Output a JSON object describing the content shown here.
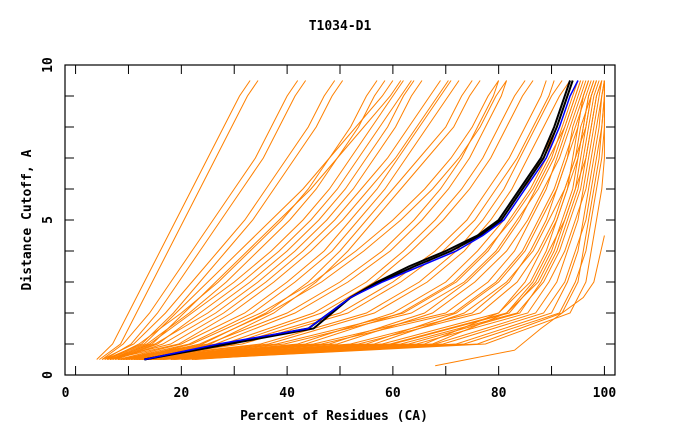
{
  "chart_data": {
    "type": "line",
    "title": "T1034-D1",
    "xlabel": "Percent of Residues (CA)",
    "ylabel": "Distance Cutoff, A",
    "xlim": [
      -2,
      102
    ],
    "ylim": [
      0,
      10
    ],
    "xticks": [
      0,
      20,
      40,
      60,
      80,
      100
    ],
    "yticks": [
      0,
      5,
      10
    ],
    "grid": false,
    "legend": "none",
    "colors": {
      "others": "#ff8000",
      "highlight": "#0000ff",
      "group": "#000000"
    },
    "levels": [
      0.5,
      1,
      2,
      3,
      4,
      5,
      6,
      7,
      8,
      9,
      9.5
    ],
    "series": [
      {
        "name": "others",
        "curves": [
          [
            4,
            7,
            10,
            13,
            16,
            19,
            22,
            25,
            28,
            31,
            33
          ],
          [
            5,
            9,
            14,
            18,
            22,
            26,
            30,
            34,
            37,
            40,
            42
          ],
          [
            6,
            12,
            20,
            27,
            33,
            39,
            44,
            48,
            52,
            55,
            57
          ],
          [
            7,
            15,
            25,
            33,
            40,
            46,
            51,
            55,
            59,
            62,
            64
          ],
          [
            8,
            20,
            32,
            40,
            47,
            52,
            57,
            61,
            65,
            69,
            71
          ],
          [
            9,
            25,
            40,
            50,
            58,
            64,
            69,
            73,
            76,
            79,
            80
          ],
          [
            10,
            30,
            50,
            60,
            68,
            74,
            78,
            82,
            85,
            88,
            89
          ],
          [
            11,
            38,
            62,
            72,
            78,
            82,
            86,
            89,
            91,
            93,
            94
          ],
          [
            12,
            45,
            70,
            78,
            83,
            86,
            89,
            91,
            93,
            95,
            96
          ],
          [
            13,
            52,
            75,
            82,
            86,
            89,
            91,
            93,
            95,
            96,
            97
          ],
          [
            14,
            58,
            80,
            85,
            88,
            91,
            93,
            95,
            96,
            97,
            98
          ],
          [
            15,
            63,
            84,
            88,
            91,
            93,
            95,
            96,
            97,
            98,
            99
          ],
          [
            16,
            68,
            87,
            91,
            93,
            95,
            96,
            97,
            98,
            99,
            99.5
          ],
          [
            18,
            72,
            90,
            93,
            95,
            96,
            97,
            98,
            99,
            99.5,
            100
          ],
          [
            20,
            76,
            92,
            95,
            96,
            97,
            98,
            99,
            99.5,
            100,
            100
          ],
          [
            22,
            66,
            80,
            86,
            89,
            91,
            93,
            94,
            95,
            96,
            97
          ],
          [
            9,
            35,
            55,
            65,
            72,
            77,
            81,
            84,
            87,
            90,
            92
          ],
          [
            8,
            28,
            45,
            55,
            62,
            68,
            73,
            77,
            80,
            83,
            85
          ],
          [
            6,
            18,
            28,
            36,
            43,
            49,
            54,
            59,
            63,
            67,
            69
          ],
          [
            5,
            11,
            17,
            22,
            27,
            32,
            36,
            40,
            44,
            47,
            49
          ],
          [
            7,
            14,
            22,
            30,
            37,
            43,
            48,
            52,
            56,
            60,
            62
          ],
          [
            10,
            22,
            35,
            45,
            53,
            60,
            66,
            71,
            75,
            78,
            80
          ],
          [
            12,
            48,
            66,
            74,
            80,
            84,
            87,
            90,
            92,
            94,
            95
          ],
          [
            14,
            55,
            72,
            80,
            85,
            88,
            91,
            93,
            94,
            96,
            97
          ],
          [
            6,
            13,
            19,
            25,
            31,
            37,
            43,
            48,
            53,
            58,
            60
          ],
          [
            8,
            24,
            36,
            44,
            50,
            55,
            60,
            65,
            70,
            73,
            75
          ],
          [
            11,
            42,
            60,
            70,
            76,
            81,
            85,
            88,
            91,
            93,
            94
          ],
          [
            13,
            60,
            82,
            87,
            90,
            92,
            94,
            95,
            96,
            97,
            98
          ]
        ],
        "extra": {
          "levels": [
            0.3,
            0.8,
            1.5,
            2,
            2.5,
            3,
            4.5
          ],
          "x": [
            68,
            83,
            88,
            92,
            96,
            98,
            100
          ]
        }
      },
      {
        "name": "highlight",
        "levels": [
          0.5,
          1,
          1.5,
          2,
          2.5,
          3,
          3.5,
          4,
          4.5,
          5,
          6,
          7,
          8,
          9,
          9.5
        ],
        "x": [
          13,
          27,
          44,
          48,
          52,
          58,
          65,
          72,
          77,
          81,
          85,
          89,
          91.5,
          93.5,
          95
        ]
      },
      {
        "name": "group",
        "curves": [
          {
            "levels": [
              0.5,
              1,
              1.5,
              2,
              2.5,
              3,
              3.5,
              4,
              4.5,
              5,
              6,
              7,
              8,
              9,
              9.5
            ],
            "x": [
              13,
              28,
              44,
              48,
              52,
              57,
              63,
              70,
              76,
              80,
              84,
              88,
              90.5,
              92.5,
              93.5
            ]
          },
          {
            "levels": [
              0.5,
              1,
              1.5,
              2,
              2.5,
              3,
              3.5,
              4,
              4.5,
              5,
              6,
              7,
              8,
              9,
              9.5
            ],
            "x": [
              13,
              29,
              45,
              48.5,
              52,
              57.5,
              64,
              71,
              76.5,
              80.5,
              84.5,
              88.5,
              91,
              93,
              94
            ]
          }
        ]
      }
    ]
  }
}
